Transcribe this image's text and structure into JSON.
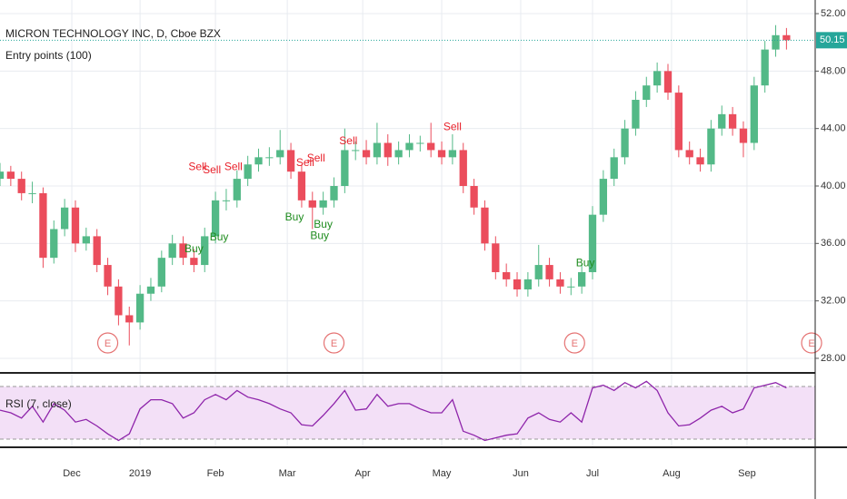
{
  "chart_data": [
    {
      "type": "candlestick",
      "title": "MICRON TECHNOLOGY INC, D, Cboe BZX",
      "indicator": "Entry points (100)",
      "up_color": "#53b987",
      "down_color": "#eb4d5c",
      "last_color": "#26a69a",
      "last": {
        "value": 50.15,
        "label": "50.15"
      },
      "x": [
        0,
        3,
        6,
        9,
        12,
        15,
        18,
        21,
        24,
        27,
        30,
        33,
        36,
        39,
        42,
        45,
        48,
        51,
        54,
        57,
        60,
        63,
        66,
        69,
        72,
        75,
        78,
        81,
        84,
        87,
        90,
        93,
        96,
        99,
        102,
        105,
        108,
        111,
        114,
        117,
        120,
        123,
        126,
        129,
        132,
        135,
        138,
        141,
        144,
        147,
        150,
        153,
        156,
        159,
        162,
        165,
        168,
        171,
        174,
        177,
        180,
        183,
        186,
        189,
        192,
        195,
        198,
        201,
        204,
        207,
        210,
        213,
        216,
        219
      ],
      "open": [
        40.5,
        41,
        40.5,
        39.5,
        39.5,
        35,
        37,
        38.5,
        36,
        36.5,
        34.5,
        33,
        31,
        30.5,
        32.5,
        33,
        35,
        36,
        35,
        34.5,
        36.5,
        39,
        39,
        40.5,
        41.5,
        42,
        42,
        42.5,
        41,
        39,
        38.5,
        39,
        40,
        42.5,
        42.5,
        42,
        43,
        42,
        42.5,
        43,
        43,
        42.5,
        42,
        42.5,
        40,
        38.5,
        36,
        34,
        33.5,
        32.8,
        33.5,
        34.5,
        33.5,
        33,
        33,
        34,
        38,
        40.5,
        42,
        44,
        46,
        47,
        48,
        46.5,
        42.5,
        42,
        41.5,
        44,
        45,
        44,
        43,
        47,
        49.5,
        50.5
      ],
      "high": [
        41.6,
        41.4,
        41,
        40.3,
        39.9,
        37.6,
        39.1,
        39,
        37.1,
        37,
        35,
        33.5,
        31.6,
        33.1,
        33.6,
        35.5,
        36.6,
        36.5,
        35.6,
        37.1,
        39.6,
        39.8,
        41.1,
        42.1,
        42.6,
        42.7,
        43.9,
        43,
        41.5,
        39.6,
        39.6,
        40.6,
        44,
        43.1,
        43.2,
        44.4,
        43.6,
        43.1,
        43.6,
        43.5,
        44.4,
        43.1,
        43.6,
        43,
        40.5,
        39,
        36.5,
        34.6,
        34,
        34,
        35.9,
        35,
        34,
        33.6,
        34.6,
        38.6,
        41.1,
        42.6,
        44.6,
        46.6,
        47.6,
        48.6,
        48.5,
        47,
        43.1,
        42.6,
        44.6,
        45.6,
        45.5,
        44.5,
        47.6,
        50.1,
        51.2,
        51
      ],
      "low": [
        40,
        40,
        39,
        38.8,
        34.3,
        34.6,
        36.5,
        35.4,
        35.5,
        34,
        32.4,
        30.3,
        28.9,
        30,
        32,
        32.6,
        34.5,
        34.5,
        34,
        34,
        36,
        38.3,
        38.5,
        40,
        41,
        41.4,
        41.5,
        40.5,
        38.5,
        37,
        38,
        38.5,
        39.5,
        41.8,
        41.5,
        41.5,
        41.4,
        41.5,
        42,
        42.4,
        42,
        41.5,
        41.5,
        39.5,
        38,
        35.5,
        33.5,
        33,
        32.3,
        32.3,
        33,
        33,
        32.5,
        32.4,
        32.5,
        33.5,
        37.5,
        40,
        41.5,
        43.5,
        45.5,
        46.5,
        46,
        42,
        41.5,
        41,
        41,
        43.5,
        43.5,
        42,
        42.5,
        46.5,
        49,
        49.5
      ],
      "close": [
        41,
        40.5,
        39.5,
        39.5,
        35,
        37,
        38.5,
        36,
        36.5,
        34.5,
        33,
        31,
        30.5,
        32.5,
        33,
        35,
        36,
        35,
        34.5,
        36.5,
        39,
        39,
        40.5,
        41.5,
        42,
        42,
        42.5,
        41,
        39,
        38.5,
        39,
        40,
        42.5,
        42.5,
        42,
        43,
        42,
        42.5,
        43,
        43,
        42.5,
        42,
        42.5,
        40,
        38.5,
        36,
        34,
        33.5,
        32.8,
        33.5,
        34.5,
        33.5,
        33,
        33,
        34,
        38,
        40.5,
        42,
        44,
        46,
        47,
        48,
        46.5,
        42.5,
        42,
        41.5,
        44,
        45,
        44,
        43,
        47,
        49.5,
        50.5,
        50.15
      ],
      "xlim": [
        0,
        227
      ],
      "ylim": [
        27.05,
        52.95
      ],
      "xticks": [
        {
          "value": 20,
          "label": "Dec"
        },
        {
          "value": 39,
          "label": "2019"
        },
        {
          "value": 60,
          "label": "Feb"
        },
        {
          "value": 80,
          "label": "Mar"
        },
        {
          "value": 101,
          "label": "Apr"
        },
        {
          "value": 123,
          "label": "May"
        },
        {
          "value": 145,
          "label": "Jun"
        },
        {
          "value": 165,
          "label": "Jul"
        },
        {
          "value": 187,
          "label": "Aug"
        },
        {
          "value": 208,
          "label": "Sep"
        }
      ],
      "yticks": [
        {
          "value": 28,
          "label": "28.00"
        },
        {
          "value": 32,
          "label": "32.00"
        },
        {
          "value": 36,
          "label": "36.00"
        },
        {
          "value": 40,
          "label": "40.00"
        },
        {
          "value": 44,
          "label": "44.00"
        },
        {
          "value": 48,
          "label": "48.00"
        },
        {
          "value": 52,
          "label": "52.00"
        }
      ],
      "grid": true,
      "signals": [
        {
          "x": 55,
          "y": 41.3,
          "text": "Sell",
          "color": "#e8202a"
        },
        {
          "x": 59,
          "y": 41.1,
          "text": "Sell",
          "color": "#e8202a"
        },
        {
          "x": 65,
          "y": 41.3,
          "text": "Sell",
          "color": "#e8202a"
        },
        {
          "x": 85,
          "y": 41.6,
          "text": "Sell",
          "color": "#e8202a"
        },
        {
          "x": 88,
          "y": 41.9,
          "text": "Sell",
          "color": "#e8202a"
        },
        {
          "x": 97,
          "y": 43.1,
          "text": "Sell",
          "color": "#e8202a"
        },
        {
          "x": 126,
          "y": 44.1,
          "text": "Sell",
          "color": "#e8202a"
        },
        {
          "x": 54,
          "y": 35.6,
          "text": "Buy",
          "color": "#1e8c1e"
        },
        {
          "x": 61,
          "y": 36.4,
          "text": "Buy",
          "color": "#1e8c1e"
        },
        {
          "x": 82,
          "y": 37.8,
          "text": "Buy",
          "color": "#1e8c1e"
        },
        {
          "x": 90,
          "y": 37.3,
          "text": "Buy",
          "color": "#1e8c1e"
        },
        {
          "x": 89,
          "y": 36.5,
          "text": "Buy",
          "color": "#1e8c1e"
        },
        {
          "x": 163,
          "y": 34.6,
          "text": "Buy",
          "color": "#1e8c1e"
        }
      ],
      "events": [
        {
          "x": 30,
          "text": "E"
        },
        {
          "x": 93,
          "text": "E"
        },
        {
          "x": 160,
          "text": "E"
        },
        {
          "x": 226,
          "text": "E"
        }
      ]
    },
    {
      "type": "line",
      "title": "RSI (7, close)",
      "color": "#8e24aa",
      "band_color": "#f3e0f7",
      "x": [
        0,
        3,
        6,
        9,
        12,
        15,
        18,
        21,
        24,
        27,
        30,
        33,
        36,
        39,
        42,
        45,
        48,
        51,
        54,
        57,
        60,
        63,
        66,
        69,
        72,
        75,
        78,
        81,
        84,
        87,
        90,
        93,
        96,
        99,
        102,
        105,
        108,
        111,
        114,
        117,
        120,
        123,
        126,
        129,
        132,
        135,
        138,
        141,
        144,
        147,
        150,
        153,
        156,
        159,
        162,
        165,
        168,
        171,
        174,
        177,
        180,
        183,
        186,
        189,
        192,
        195,
        198,
        201,
        204,
        207,
        210,
        213,
        216,
        219
      ],
      "values": [
        52,
        50,
        46,
        55,
        43,
        57,
        52,
        43,
        45,
        40,
        34,
        29,
        34,
        53,
        60,
        60,
        57,
        46,
        50,
        60,
        64,
        60,
        67,
        62,
        60,
        57,
        53,
        50,
        41,
        40,
        48,
        57,
        67,
        52,
        53,
        64,
        55,
        57,
        57,
        53,
        50,
        50,
        60,
        36,
        33,
        29,
        31,
        33,
        34,
        46,
        50,
        45,
        43,
        50,
        43,
        69,
        71,
        67,
        73,
        69,
        74,
        67,
        50,
        40,
        41,
        46,
        52,
        55,
        50,
        53,
        69,
        71,
        73,
        69
      ],
      "xlim": [
        0,
        227
      ],
      "ylim": [
        24.5,
        79.7
      ],
      "bands": [
        30,
        70
      ]
    }
  ]
}
